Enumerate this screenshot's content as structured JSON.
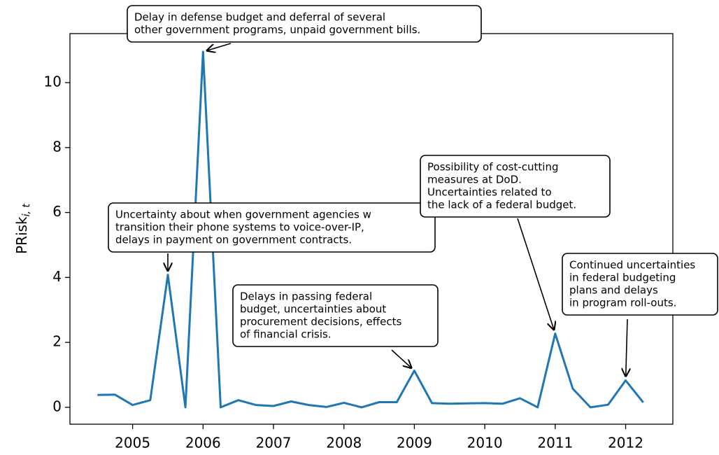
{
  "chart_data": {
    "type": "line",
    "ylabel": "PRisk",
    "ylabel_subscript": "i, t",
    "x": [
      2004.5,
      2004.75,
      2005,
      2005.25,
      2005.5,
      2005.75,
      2006,
      2006.25,
      2006.5,
      2006.75,
      2007,
      2007.25,
      2007.5,
      2007.75,
      2008,
      2008.25,
      2008.5,
      2008.75,
      2009,
      2009.25,
      2009.5,
      2009.75,
      2010,
      2010.25,
      2010.5,
      2010.75,
      2011,
      2011.25,
      2011.5,
      2011.75,
      2012,
      2012.25
    ],
    "values": [
      0.38,
      0.39,
      0.07,
      0.22,
      4.08,
      0.0,
      10.95,
      0.0,
      0.22,
      0.07,
      0.04,
      0.18,
      0.07,
      0.01,
      0.14,
      0.0,
      0.16,
      0.16,
      1.13,
      0.13,
      0.11,
      0.12,
      0.13,
      0.11,
      0.28,
      0.0,
      2.27,
      0.57,
      0.0,
      0.08,
      0.83,
      0.15
    ],
    "color": "#1f77b4",
    "xlim": [
      2004.11,
      2012.67
    ],
    "xticks": [
      2005,
      2006,
      2007,
      2008,
      2009,
      2010,
      2011,
      2012
    ],
    "ylim": [
      -0.52,
      11.51
    ],
    "yticks": [
      0,
      2,
      4,
      6,
      8,
      10
    ],
    "annotations": [
      {
        "lines": [
          "Delay in defense budget and deferral of several",
          "other government programs, unpaid government bills."
        ]
      },
      {
        "lines": [
          "Uncertainty about when government agencies w",
          "transition their phone systems to voice-over-IP,",
          "delays in payment on government contracts."
        ]
      },
      {
        "lines": [
          "Delays in passing federal",
          "budget, uncertainties about",
          "procurement decisions, effects",
          "of financial crisis."
        ]
      },
      {
        "lines": [
          "Possibility of cost-cutting",
          "measures at DoD.",
          "Uncertainties related to",
          "the lack of a federal budget."
        ]
      },
      {
        "lines": [
          "Continued uncertainties",
          "in federal budgeting",
          "plans and delays",
          "in program roll-outs."
        ]
      }
    ]
  }
}
